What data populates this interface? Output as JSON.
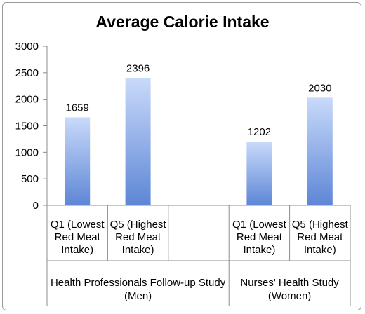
{
  "chart_data": {
    "type": "bar",
    "title": "Average Calorie Intake",
    "ylim": [
      0,
      3000
    ],
    "yticks": [
      0,
      500,
      1000,
      1500,
      2000,
      2500,
      3000
    ],
    "grid": false,
    "legend": "none",
    "bar_color": "#7da4e6",
    "groups": [
      {
        "label": [
          "Health Professionals Follow-up Study",
          "(Men)"
        ],
        "categories": [
          {
            "label": [
              "Q1 (Lowest",
              "Red Meat",
              "Intake)"
            ],
            "value": 1659
          },
          {
            "label": [
              "Q5 (Highest",
              "Red Meat",
              "Intake)"
            ],
            "value": 2396
          },
          {
            "label": [],
            "value": null
          }
        ]
      },
      {
        "label": [
          "Nurses' Health Study",
          "(Women)"
        ],
        "categories": [
          {
            "label": [
              "Q1 (Lowest",
              "Red Meat",
              "Intake)"
            ],
            "value": 1202
          },
          {
            "label": [
              "Q5 (Highest",
              "Red Meat",
              "Intake)"
            ],
            "value": 2030
          }
        ]
      }
    ]
  }
}
